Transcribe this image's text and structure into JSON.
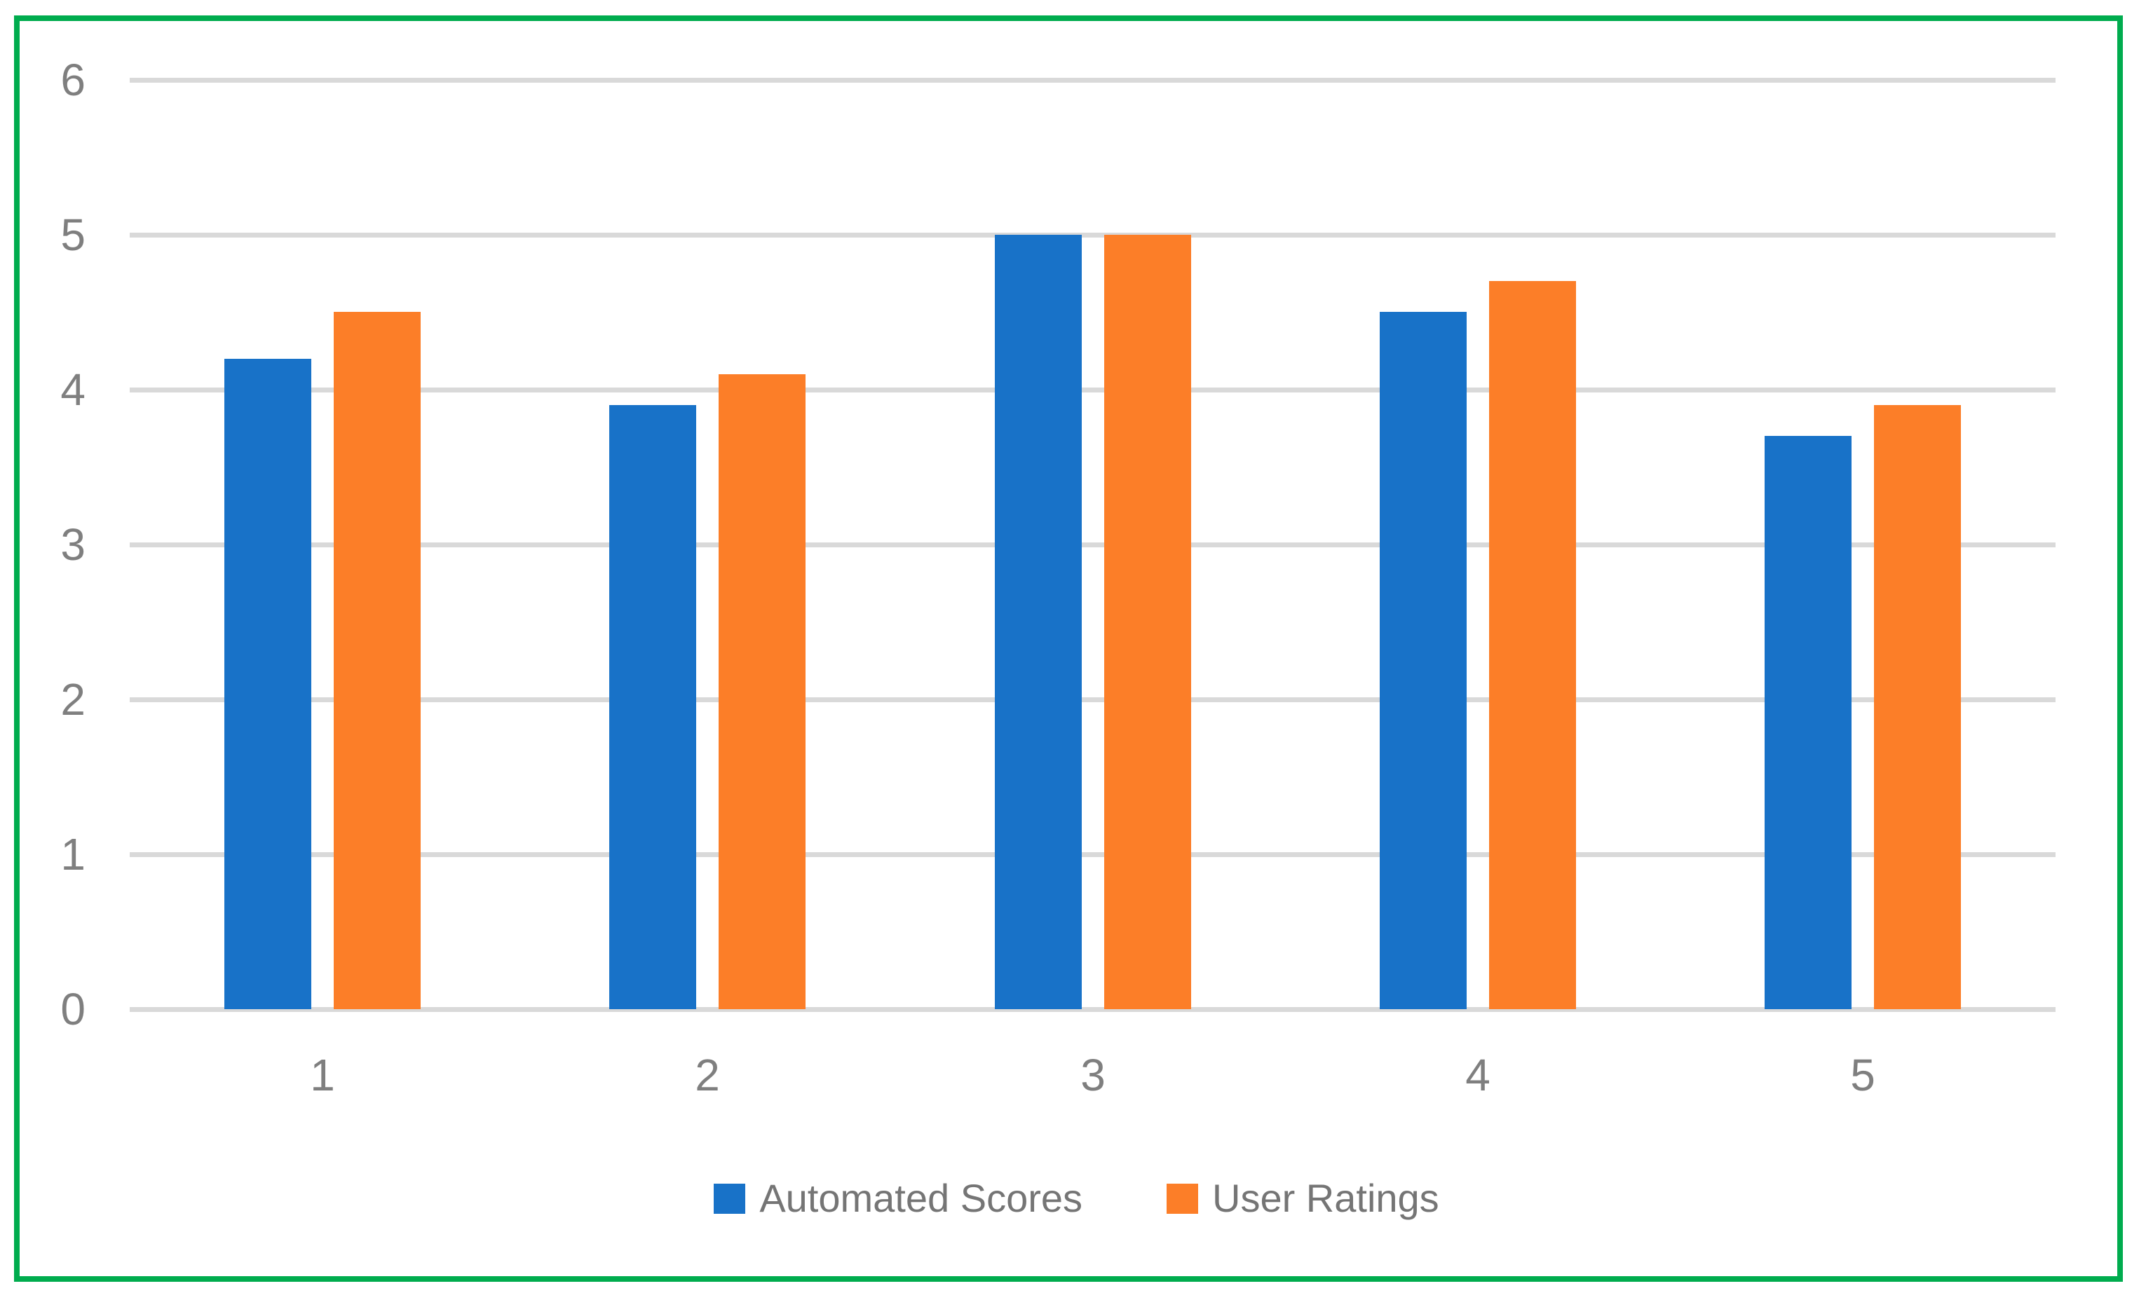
{
  "chart_data": {
    "type": "bar",
    "categories": [
      "1",
      "2",
      "3",
      "4",
      "5"
    ],
    "series": [
      {
        "name": "Automated Scores",
        "color": "#1872C8",
        "values": [
          4.2,
          3.9,
          5,
          4.5,
          3.7
        ]
      },
      {
        "name": "User Ratings",
        "color": "#FC7E28",
        "values": [
          4.5,
          4.1,
          5,
          4.7,
          3.9
        ]
      }
    ],
    "title": "",
    "xlabel": "",
    "ylabel": "",
    "ylim": [
      0,
      6
    ],
    "yticks": [
      0,
      1,
      2,
      3,
      4,
      5,
      6
    ],
    "grid": "horizontal",
    "legend_position": "bottom"
  },
  "style": {
    "frame_color": "#00AC4E",
    "gridline_color": "#D9D9D9",
    "tick_label_color": "#7F7F7F",
    "legend_text_color": "#757575",
    "background_color": "#FFFFFF"
  }
}
